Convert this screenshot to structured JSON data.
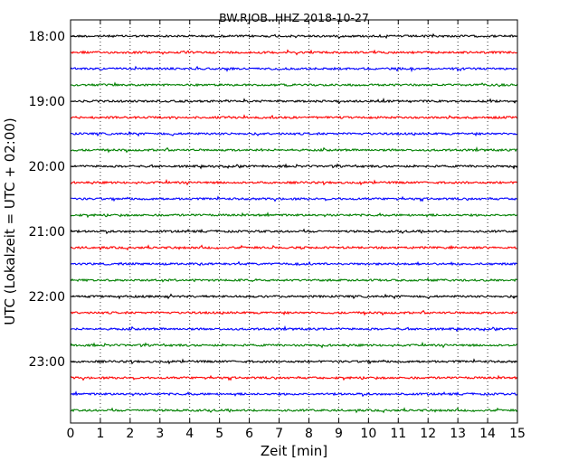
{
  "chart_data": {
    "type": "line",
    "title": "BW.RJOB..HHZ 2018-10-27",
    "xlabel": "Zeit  [min]",
    "ylabel": "UTC (Lokalzeit = UTC + 02:00)",
    "xlim": [
      0,
      15
    ],
    "x_ticks": [
      0,
      1,
      2,
      3,
      4,
      5,
      6,
      7,
      8,
      9,
      10,
      11,
      12,
      13,
      14,
      15
    ],
    "y_tick_labels": [
      "18:00",
      "19:00",
      "20:00",
      "21:00",
      "22:00",
      "23:00"
    ],
    "grid": "vertical dotted",
    "trace_interval_minutes": 15,
    "trace_colors": [
      "#000000",
      "#ff0000",
      "#0000ff",
      "#008000"
    ],
    "traces": [
      {
        "start": "18:00"
      },
      {
        "start": "18:15"
      },
      {
        "start": "18:30"
      },
      {
        "start": "18:45"
      },
      {
        "start": "19:00"
      },
      {
        "start": "19:15"
      },
      {
        "start": "19:30"
      },
      {
        "start": "19:45"
      },
      {
        "start": "20:00"
      },
      {
        "start": "20:15"
      },
      {
        "start": "20:30"
      },
      {
        "start": "20:45"
      },
      {
        "start": "21:00"
      },
      {
        "start": "21:15"
      },
      {
        "start": "21:30"
      },
      {
        "start": "21:45"
      },
      {
        "start": "22:00"
      },
      {
        "start": "22:15"
      },
      {
        "start": "22:30"
      },
      {
        "start": "22:45"
      },
      {
        "start": "23:00"
      },
      {
        "start": "23:15"
      },
      {
        "start": "23:30"
      },
      {
        "start": "23:45"
      }
    ]
  }
}
